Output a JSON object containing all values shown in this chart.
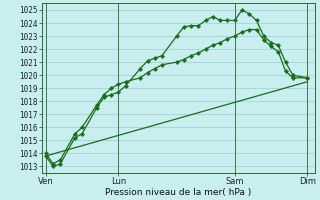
{
  "background_color": "#c8eef0",
  "grid_color": "#9ecfcf",
  "line_color": "#1a6b1a",
  "title": "Pression niveau de la mer( hPa )",
  "ylim_min": 1012.5,
  "ylim_max": 1025.5,
  "yticks": [
    1013,
    1014,
    1015,
    1016,
    1017,
    1018,
    1019,
    1020,
    1021,
    1022,
    1023,
    1024,
    1025
  ],
  "xtick_labels": [
    "Ven",
    "Lun",
    "Sam",
    "Dim"
  ],
  "xtick_positions": [
    0,
    10,
    26,
    36
  ],
  "vline_positions": [
    0,
    10,
    26,
    36
  ],
  "n_points": 40,
  "series1_x": [
    0,
    1,
    2,
    4,
    5,
    7,
    8,
    9,
    10,
    11,
    13,
    14,
    15,
    16,
    18,
    19,
    20,
    21,
    22,
    23,
    24,
    25,
    26,
    27,
    28,
    29,
    30,
    31,
    32,
    33,
    34,
    36
  ],
  "series1_y": [
    1013.8,
    1013.0,
    1013.2,
    1015.2,
    1015.5,
    1017.5,
    1018.3,
    1018.5,
    1018.7,
    1019.2,
    1020.5,
    1021.1,
    1021.3,
    1021.5,
    1023.0,
    1023.7,
    1023.8,
    1023.8,
    1024.2,
    1024.5,
    1024.2,
    1024.2,
    1024.2,
    1025.0,
    1024.7,
    1024.2,
    1023.0,
    1022.5,
    1022.3,
    1021.0,
    1020.0,
    1019.8
  ],
  "series2_x": [
    0,
    1,
    2,
    4,
    5,
    7,
    8,
    9,
    10,
    11,
    13,
    14,
    15,
    16,
    18,
    19,
    20,
    21,
    22,
    23,
    24,
    25,
    26,
    27,
    28,
    29,
    30,
    31,
    32,
    33,
    34,
    36
  ],
  "series2_y": [
    1014.0,
    1013.2,
    1013.5,
    1015.5,
    1016.0,
    1017.7,
    1018.5,
    1019.0,
    1019.3,
    1019.5,
    1019.8,
    1020.2,
    1020.5,
    1020.8,
    1021.0,
    1021.2,
    1021.5,
    1021.7,
    1022.0,
    1022.3,
    1022.5,
    1022.8,
    1023.0,
    1023.3,
    1023.5,
    1023.5,
    1022.7,
    1022.2,
    1021.8,
    1020.3,
    1019.8,
    1019.8
  ],
  "series3_x": [
    0,
    36
  ],
  "series3_y": [
    1013.8,
    1019.5
  ],
  "markersize": 2.2,
  "linewidth": 0.9,
  "tick_fontsize": 5.5,
  "xlabel_fontsize": 6.5
}
